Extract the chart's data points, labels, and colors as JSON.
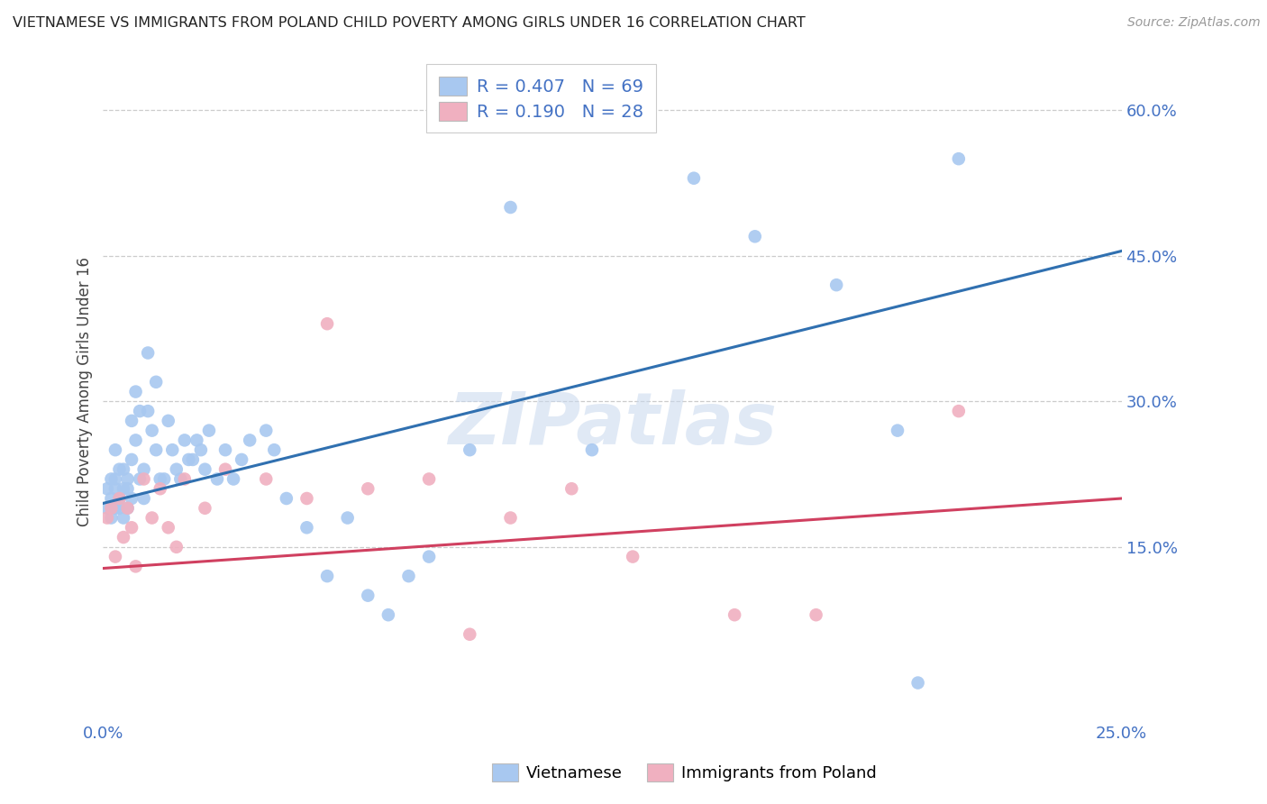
{
  "title": "VIETNAMESE VS IMMIGRANTS FROM POLAND CHILD POVERTY AMONG GIRLS UNDER 16 CORRELATION CHART",
  "source": "Source: ZipAtlas.com",
  "ylabel": "Child Poverty Among Girls Under 16",
  "xlim": [
    0.0,
    0.25
  ],
  "ylim": [
    -0.03,
    0.65
  ],
  "yticks": [
    0.15,
    0.3,
    0.45,
    0.6
  ],
  "ytick_labels": [
    "15.0%",
    "30.0%",
    "45.0%",
    "60.0%"
  ],
  "xticks": [
    0.0,
    0.25
  ],
  "xtick_labels": [
    "0.0%",
    "25.0%"
  ],
  "background_color": "#ffffff",
  "vietnamese": {
    "R": 0.407,
    "N": 69,
    "color_scatter": "#a8c8f0",
    "color_line": "#3070b0",
    "label": "Vietnamese",
    "x": [
      0.001,
      0.001,
      0.002,
      0.002,
      0.002,
      0.003,
      0.003,
      0.003,
      0.003,
      0.004,
      0.004,
      0.004,
      0.005,
      0.005,
      0.005,
      0.006,
      0.006,
      0.006,
      0.007,
      0.007,
      0.007,
      0.008,
      0.008,
      0.009,
      0.009,
      0.01,
      0.01,
      0.011,
      0.011,
      0.012,
      0.013,
      0.013,
      0.014,
      0.015,
      0.016,
      0.017,
      0.018,
      0.019,
      0.02,
      0.021,
      0.022,
      0.023,
      0.024,
      0.025,
      0.026,
      0.028,
      0.03,
      0.032,
      0.034,
      0.036,
      0.04,
      0.042,
      0.045,
      0.05,
      0.055,
      0.06,
      0.065,
      0.07,
      0.075,
      0.08,
      0.09,
      0.1,
      0.12,
      0.145,
      0.16,
      0.18,
      0.195,
      0.2,
      0.21
    ],
    "y": [
      0.19,
      0.21,
      0.2,
      0.22,
      0.18,
      0.19,
      0.22,
      0.21,
      0.25,
      0.2,
      0.23,
      0.19,
      0.21,
      0.18,
      0.23,
      0.22,
      0.19,
      0.21,
      0.28,
      0.24,
      0.2,
      0.31,
      0.26,
      0.22,
      0.29,
      0.23,
      0.2,
      0.35,
      0.29,
      0.27,
      0.25,
      0.32,
      0.22,
      0.22,
      0.28,
      0.25,
      0.23,
      0.22,
      0.26,
      0.24,
      0.24,
      0.26,
      0.25,
      0.23,
      0.27,
      0.22,
      0.25,
      0.22,
      0.24,
      0.26,
      0.27,
      0.25,
      0.2,
      0.17,
      0.12,
      0.18,
      0.1,
      0.08,
      0.12,
      0.14,
      0.25,
      0.5,
      0.25,
      0.53,
      0.47,
      0.42,
      0.27,
      0.01,
      0.55
    ],
    "trend_x": [
      0.0,
      0.25
    ],
    "trend_y": [
      0.195,
      0.455
    ]
  },
  "poland": {
    "R": 0.19,
    "N": 28,
    "color_scatter": "#f0b0c0",
    "color_line": "#d04060",
    "label": "Immigrants from Poland",
    "x": [
      0.001,
      0.002,
      0.003,
      0.004,
      0.005,
      0.006,
      0.007,
      0.008,
      0.01,
      0.012,
      0.014,
      0.016,
      0.018,
      0.02,
      0.025,
      0.03,
      0.04,
      0.05,
      0.055,
      0.065,
      0.08,
      0.09,
      0.1,
      0.115,
      0.13,
      0.155,
      0.175,
      0.21
    ],
    "y": [
      0.18,
      0.19,
      0.14,
      0.2,
      0.16,
      0.19,
      0.17,
      0.13,
      0.22,
      0.18,
      0.21,
      0.17,
      0.15,
      0.22,
      0.19,
      0.23,
      0.22,
      0.2,
      0.38,
      0.21,
      0.22,
      0.06,
      0.18,
      0.21,
      0.14,
      0.08,
      0.08,
      0.29
    ],
    "trend_x": [
      0.0,
      0.25
    ],
    "trend_y": [
      0.128,
      0.2
    ]
  }
}
